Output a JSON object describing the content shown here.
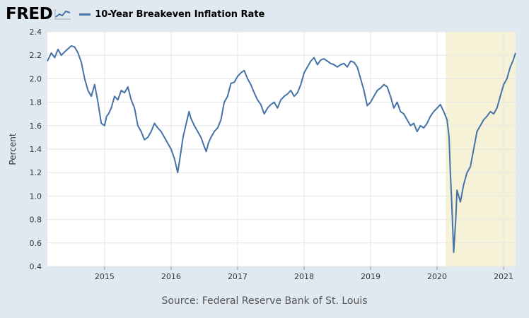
{
  "header": {
    "logo_text": "FRED",
    "logo_icon": "chart-line-icon",
    "series_title": "10-Year Breakeven Inflation Rate"
  },
  "colors": {
    "background": "#e1e9f0",
    "plot_background": "#ffffff",
    "line": "#4572a7",
    "recession_shading": "#f5f2d8",
    "grid": "#e6e6e6"
  },
  "source_text": "Source: Federal Reserve Bank of St. Louis",
  "chart_data": {
    "type": "line",
    "title": "",
    "xlabel": "",
    "ylabel": "Percent",
    "ylim": [
      0.4,
      2.4
    ],
    "yticks": [
      "0.4",
      "0.6",
      "0.8",
      "1.0",
      "1.2",
      "1.4",
      "1.6",
      "1.8",
      "2.0",
      "2.2",
      "2.4"
    ],
    "xlim": [
      2014.14,
      2021.18
    ],
    "xticks": [
      "2015",
      "2016",
      "2017",
      "2018",
      "2019",
      "2020",
      "2021"
    ],
    "grid": true,
    "legend": "top-left",
    "shaded_range": {
      "start": 2020.13,
      "end": 2021.18
    },
    "series": [
      {
        "name": "10-Year Breakeven Inflation Rate",
        "x": [
          2014.14,
          2014.2,
          2014.25,
          2014.3,
          2014.35,
          2014.42,
          2014.5,
          2014.55,
          2014.6,
          2014.65,
          2014.7,
          2014.75,
          2014.8,
          2014.85,
          2014.9,
          2014.95,
          2015.0,
          2015.03,
          2015.06,
          2015.1,
          2015.15,
          2015.2,
          2015.25,
          2015.3,
          2015.35,
          2015.4,
          2015.45,
          2015.5,
          2015.55,
          2015.6,
          2015.65,
          2015.7,
          2015.75,
          2015.8,
          2015.85,
          2015.9,
          2015.95,
          2016.0,
          2016.05,
          2016.1,
          2016.14,
          2016.18,
          2016.22,
          2016.27,
          2016.3,
          2016.35,
          2016.4,
          2016.45,
          2016.5,
          2016.53,
          2016.56,
          2016.6,
          2016.65,
          2016.7,
          2016.75,
          2016.8,
          2016.85,
          2016.9,
          2016.95,
          2017.0,
          2017.05,
          2017.1,
          2017.15,
          2017.2,
          2017.25,
          2017.3,
          2017.35,
          2017.4,
          2017.45,
          2017.5,
          2017.55,
          2017.6,
          2017.65,
          2017.7,
          2017.75,
          2017.8,
          2017.85,
          2017.9,
          2017.95,
          2018.0,
          2018.05,
          2018.1,
          2018.15,
          2018.2,
          2018.25,
          2018.3,
          2018.35,
          2018.4,
          2018.45,
          2018.5,
          2018.55,
          2018.6,
          2018.65,
          2018.7,
          2018.75,
          2018.8,
          2018.85,
          2018.9,
          2018.95,
          2019.0,
          2019.05,
          2019.1,
          2019.15,
          2019.2,
          2019.25,
          2019.3,
          2019.35,
          2019.4,
          2019.45,
          2019.5,
          2019.55,
          2019.6,
          2019.65,
          2019.7,
          2019.75,
          2019.8,
          2019.85,
          2019.9,
          2019.95,
          2020.0,
          2020.05,
          2020.1,
          2020.15,
          2020.18,
          2020.2,
          2020.22,
          2020.25,
          2020.28,
          2020.3,
          2020.35,
          2020.4,
          2020.45,
          2020.5,
          2020.55,
          2020.6,
          2020.65,
          2020.7,
          2020.75,
          2020.8,
          2020.85,
          2020.9,
          2020.95,
          2021.0,
          2021.05,
          2021.1,
          2021.14,
          2021.18
        ],
        "values": [
          2.15,
          2.22,
          2.18,
          2.25,
          2.2,
          2.24,
          2.28,
          2.27,
          2.22,
          2.14,
          2.0,
          1.9,
          1.85,
          1.95,
          1.8,
          1.62,
          1.6,
          1.68,
          1.7,
          1.75,
          1.85,
          1.82,
          1.9,
          1.88,
          1.93,
          1.82,
          1.75,
          1.6,
          1.55,
          1.48,
          1.5,
          1.55,
          1.62,
          1.58,
          1.55,
          1.5,
          1.45,
          1.4,
          1.32,
          1.2,
          1.35,
          1.5,
          1.6,
          1.72,
          1.66,
          1.6,
          1.55,
          1.5,
          1.42,
          1.38,
          1.45,
          1.5,
          1.55,
          1.58,
          1.65,
          1.8,
          1.85,
          1.96,
          1.97,
          2.02,
          2.05,
          2.07,
          2.0,
          1.95,
          1.88,
          1.82,
          1.78,
          1.7,
          1.75,
          1.78,
          1.8,
          1.75,
          1.82,
          1.85,
          1.87,
          1.9,
          1.85,
          1.88,
          1.95,
          2.05,
          2.1,
          2.15,
          2.18,
          2.12,
          2.16,
          2.17,
          2.15,
          2.13,
          2.12,
          2.1,
          2.12,
          2.13,
          2.1,
          2.15,
          2.14,
          2.1,
          2.0,
          1.9,
          1.77,
          1.8,
          1.85,
          1.9,
          1.92,
          1.95,
          1.93,
          1.85,
          1.75,
          1.8,
          1.72,
          1.7,
          1.65,
          1.6,
          1.62,
          1.55,
          1.6,
          1.58,
          1.62,
          1.68,
          1.72,
          1.75,
          1.78,
          1.72,
          1.65,
          1.5,
          1.2,
          0.95,
          0.52,
          0.8,
          1.05,
          0.95,
          1.1,
          1.2,
          1.25,
          1.4,
          1.55,
          1.6,
          1.65,
          1.68,
          1.72,
          1.7,
          1.75,
          1.85,
          1.95,
          2.0,
          2.1,
          2.15,
          2.22
        ]
      }
    ]
  }
}
